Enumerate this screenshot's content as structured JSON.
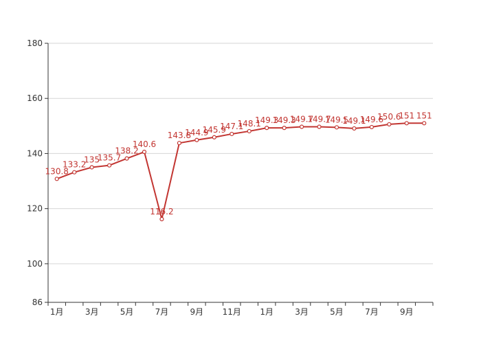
{
  "chart_data": {
    "type": "line",
    "title": "",
    "xlabel": "",
    "ylabel": "",
    "ylim": [
      86,
      180
    ],
    "y_ticks": [
      86,
      100,
      120,
      140,
      160,
      180
    ],
    "grid": true,
    "x_tick_labels": [
      "1月",
      "3月",
      "5月",
      "7月",
      "9月",
      "11月",
      "1月",
      "3月",
      "5月",
      "7月",
      "9月"
    ],
    "series": [
      {
        "values": [
          130.8,
          133.2,
          135,
          135.7,
          138.2,
          140.6,
          116.2,
          143.8,
          144.9,
          145.9,
          147.1,
          148.1,
          149.3,
          149.3,
          149.7,
          149.7,
          149.5,
          149.1,
          149.6,
          150.6,
          151,
          151
        ],
        "labels": [
          "130.8",
          "133.2",
          "135",
          "135.7",
          "138.2",
          "140.6",
          "116.2",
          "143.8",
          "144.9",
          "145.9",
          "147.1",
          "148.1",
          "149.3",
          "149.3",
          "149.7",
          "149.7",
          "149.5",
          "149.1",
          "149.6",
          "150.6",
          "151",
          "151"
        ],
        "color": "#c23531"
      }
    ]
  }
}
